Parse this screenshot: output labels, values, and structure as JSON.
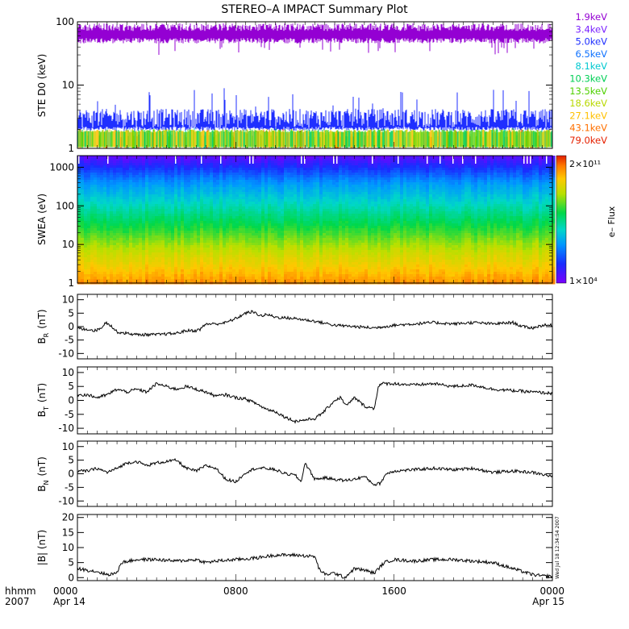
{
  "title": "STEREO–A IMPACT Summary Plot",
  "chart_data": [
    {
      "type": "line",
      "panel": "ste",
      "ylabel": "STE D0 (keV)",
      "yscale": "log",
      "ylim": [
        1,
        100
      ],
      "yticks": [
        "1",
        "10",
        "100"
      ],
      "xlim_hours": [
        0,
        24
      ],
      "series": [
        {
          "name": "1.9keV",
          "color": "#9400d3"
        },
        {
          "name": "3.4keV",
          "color": "#7a22ff"
        },
        {
          "name": "5.0keV",
          "color": "#1f2fff"
        },
        {
          "name": "6.5keV",
          "color": "#0f72ff"
        },
        {
          "name": "8.1keV",
          "color": "#00c8d0"
        },
        {
          "name": "10.3keV",
          "color": "#00cf55"
        },
        {
          "name": "13.5keV",
          "color": "#4fd000"
        },
        {
          "name": "18.6keV",
          "color": "#b8d800"
        },
        {
          "name": "27.1keV",
          "color": "#ffc000"
        },
        {
          "name": "43.1keV",
          "color": "#ff7000"
        },
        {
          "name": "79.0keV",
          "color": "#e52000"
        }
      ],
      "approx_levels": {
        "1.9keV": 65,
        "5.0keV": 3.5,
        "low_bands": 1.5
      }
    },
    {
      "type": "heatmap",
      "panel": "swea",
      "ylabel": "SWEA (eV)",
      "yscale": "log",
      "ylim": [
        1,
        2000
      ],
      "yticks": [
        "1",
        "10",
        "100",
        "1000"
      ],
      "colorbar": {
        "label": "e– Flux",
        "min": 10000,
        "max": 200000000000,
        "min_label": "1×10⁴",
        "max_label": "2×10¹¹"
      },
      "profile": [
        {
          "energy_ev": 2,
          "level": 0.83
        },
        {
          "energy_ev": 7,
          "level": 0.72
        },
        {
          "energy_ev": 30,
          "level": 0.56
        },
        {
          "energy_ev": 150,
          "level": 0.4
        },
        {
          "energy_ev": 400,
          "level": 0.3
        },
        {
          "energy_ev": 900,
          "level": 0.17
        },
        {
          "energy_ev": 1800,
          "level": 0.05
        }
      ]
    },
    {
      "type": "line",
      "panel": "br",
      "ylabel_main": "B",
      "ylabel_sub": "R",
      "ylabel_unit": "(nT)",
      "ylim": [
        -12,
        12
      ],
      "yticks": [
        "-10",
        "-5",
        "0",
        "5",
        "10"
      ],
      "x": [
        0,
        0.3,
        0.6,
        0.9,
        1.2,
        1.4,
        1.6,
        2.0,
        2.5,
        3,
        4,
        5,
        5.5,
        6,
        6.2,
        6.5,
        7,
        7.5,
        8,
        8.5,
        8.8,
        9,
        9.3,
        9.6,
        10,
        11,
        12,
        13,
        14,
        15,
        16,
        17,
        18,
        19,
        20,
        21,
        22,
        22.5,
        23,
        23.5,
        24
      ],
      "y": [
        -0.5,
        -1,
        -1,
        -1.5,
        -0.5,
        1.5,
        1,
        -2,
        -2.5,
        -3,
        -3,
        -2.5,
        -1.5,
        -1.5,
        -1,
        1,
        1,
        1.5,
        3,
        5,
        5.5,
        5,
        4,
        4.5,
        3.5,
        3,
        2,
        0.5,
        0,
        -0.5,
        0.5,
        1,
        1.5,
        1,
        1.5,
        1,
        1.5,
        0,
        -0.5,
        0.5,
        0.5
      ]
    },
    {
      "type": "line",
      "panel": "bt",
      "ylabel_main": "B",
      "ylabel_sub": "T",
      "ylabel_unit": "(nT)",
      "ylim": [
        -12,
        12
      ],
      "yticks": [
        "-10",
        "-5",
        "0",
        "5",
        "10"
      ],
      "x": [
        0,
        0.5,
        1,
        1.5,
        2,
        2.5,
        3,
        3.5,
        4,
        4.5,
        5,
        5.5,
        6,
        6.5,
        7,
        7.5,
        8,
        8.5,
        9,
        9.5,
        10,
        10.5,
        11,
        11.5,
        12,
        12.3,
        12.6,
        13,
        13.3,
        13.6,
        14,
        14.5,
        15,
        15.2,
        15.4,
        16,
        17,
        18,
        19,
        20,
        21,
        22,
        23,
        24
      ],
      "y": [
        2,
        2,
        1,
        2,
        4,
        3,
        4,
        3,
        6,
        5,
        4,
        5,
        4,
        3,
        1.5,
        2,
        1,
        0.5,
        -1,
        -3,
        -4,
        -6,
        -7.5,
        -7,
        -6.5,
        -5,
        -3,
        0,
        1,
        -2,
        1,
        -2,
        -3,
        5,
        6,
        6,
        5.5,
        6,
        5,
        5.5,
        4,
        3.5,
        3,
        2.5
      ]
    },
    {
      "type": "line",
      "panel": "bn",
      "ylabel_main": "B",
      "ylabel_sub": "N",
      "ylabel_unit": "(nT)",
      "ylim": [
        -12,
        12
      ],
      "yticks": [
        "-10",
        "-5",
        "0",
        "5",
        "10"
      ],
      "x": [
        0,
        0.5,
        1,
        1.5,
        2,
        2.5,
        3,
        3.5,
        4,
        4.5,
        5,
        5.5,
        6,
        6.5,
        7,
        7.5,
        8,
        8.5,
        9,
        9.5,
        10,
        10.5,
        11,
        11.3,
        11.5,
        12,
        12.5,
        13,
        13.5,
        14,
        14.5,
        15,
        15.3,
        15.6,
        16,
        17,
        18,
        19,
        20,
        21,
        22,
        23,
        24
      ],
      "y": [
        1,
        1,
        2,
        0.5,
        2,
        4,
        4.5,
        3,
        4,
        4.5,
        5,
        2,
        1,
        3,
        2,
        -2,
        -3,
        0.5,
        2,
        2,
        1.5,
        0,
        -0.5,
        -3,
        4,
        -2,
        -1.5,
        -2,
        -2.5,
        -2,
        -1,
        -4,
        -3.5,
        0,
        1,
        1.5,
        2,
        1.5,
        2,
        0.5,
        1,
        0.5,
        -1
      ]
    },
    {
      "type": "line",
      "panel": "bmag",
      "ylabel": "|B| (nT)",
      "ylim": [
        -1,
        21
      ],
      "yticks": [
        "0",
        "5",
        "10",
        "15",
        "20"
      ],
      "x": [
        0,
        0.5,
        1,
        1.5,
        2,
        2.2,
        3,
        4,
        5,
        6,
        6.5,
        7,
        8,
        9,
        9.5,
        10,
        11,
        12,
        12.2,
        12.5,
        13,
        13.5,
        14,
        14.5,
        15,
        15.5,
        16,
        17,
        18,
        19,
        20,
        21,
        22,
        22.5,
        23,
        23.5,
        24
      ],
      "y": [
        3,
        2.5,
        2,
        1,
        1.5,
        5,
        6,
        6,
        5.5,
        6,
        5,
        5.5,
        6,
        6.5,
        7,
        7.5,
        7.5,
        7,
        3,
        1,
        1.5,
        0,
        3,
        2.5,
        1.5,
        5,
        6,
        5.5,
        6,
        6,
        5.5,
        5,
        3,
        2,
        1,
        0.5,
        0.5
      ]
    }
  ],
  "x_axis": {
    "row1_label": "hhmm",
    "row2_label": "2007",
    "ticks": [
      {
        "hours": 0,
        "time": "0000",
        "date": "Apr 14"
      },
      {
        "hours": 8,
        "time": "0800",
        "date": ""
      },
      {
        "hours": 16,
        "time": "1600",
        "date": ""
      },
      {
        "hours": 24,
        "time": "0000",
        "date": "Apr 15"
      }
    ]
  },
  "stamp": "Wed Jul 18 12:34:54 2007"
}
